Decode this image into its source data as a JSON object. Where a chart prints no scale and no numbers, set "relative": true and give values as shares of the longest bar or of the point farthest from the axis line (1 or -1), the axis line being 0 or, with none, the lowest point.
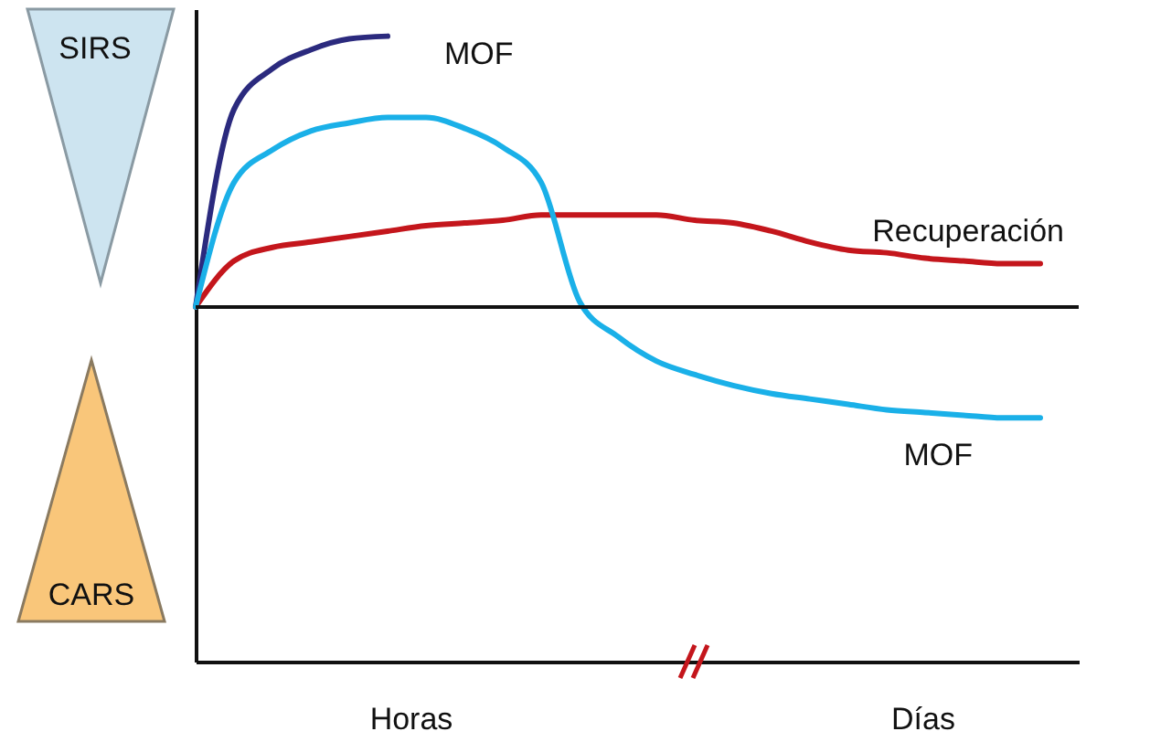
{
  "chart_data": {
    "type": "line",
    "relative": true,
    "categories": [
      null,
      null,
      null,
      null,
      null,
      null,
      null,
      null,
      null,
      null,
      null,
      null,
      null,
      null,
      null,
      null,
      null,
      null,
      null,
      null,
      null,
      null,
      null,
      null
    ],
    "series": [
      {
        "name": "MOF",
        "color": "#2b2a7e",
        "values": [
          0,
          0.73,
          0.88,
          0.95,
          0.99,
          1,
          null,
          null,
          null,
          null,
          null,
          null,
          null,
          null,
          null,
          null,
          null,
          null,
          null,
          null,
          null,
          null,
          null,
          null
        ]
      },
      {
        "name": "Recuperación",
        "color": "#c4161c",
        "values": [
          0,
          0.17,
          0.22,
          0.24,
          0.26,
          0.28,
          0.3,
          0.31,
          0.32,
          0.34,
          0.34,
          0.34,
          0.34,
          0.32,
          0.31,
          0.28,
          0.24,
          0.21,
          0.2,
          0.18,
          0.17,
          0.16,
          0.16,
          null
        ]
      },
      {
        "name": "MOF",
        "color": "#1ab0e8",
        "values": [
          0,
          0.46,
          0.58,
          0.65,
          0.68,
          0.7,
          0.7,
          0.66,
          0.59,
          0.46,
          0.02,
          -0.11,
          -0.2,
          -0.25,
          -0.29,
          -0.32,
          -0.34,
          -0.36,
          -0.38,
          -0.39,
          -0.4,
          -0.41,
          -0.41,
          null
        ]
      }
    ],
    "annotations": [
      "SIRS",
      "CARS",
      "Horas",
      "Días"
    ]
  }
}
